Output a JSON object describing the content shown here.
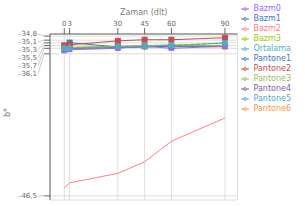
{
  "chart_data": {
    "type": "line",
    "x_label": "Zaman (dlt)",
    "y_label": "b*",
    "x": [
      0,
      3,
      30,
      45,
      60,
      90
    ],
    "xlim": [
      -8,
      97
    ],
    "xticks": [
      0,
      3,
      30,
      45,
      60,
      90
    ],
    "ylim": [
      -46.8,
      -34.65
    ],
    "yticks": [
      {
        "value": -34.8,
        "label": "-34,8"
      },
      {
        "value": -35.1,
        "label": "-35,1"
      },
      {
        "value": -35.3,
        "label": "-35,3"
      },
      {
        "value": -35.5,
        "label": "-35,5"
      },
      {
        "value": -35.7,
        "label": "-35,7"
      },
      {
        "value": -36.1,
        "label": "-36,1"
      },
      {
        "value": -46.5,
        "label": "-46,5"
      }
    ],
    "grid": true,
    "legend": "right",
    "series": [
      {
        "name": "Pantone1",
        "color": "#4472C4",
        "marker": "square",
        "line_style": "solid",
        "values": [
          -35.75,
          -35.28,
          -35.6,
          -35.55,
          -35.58,
          -35.55
        ]
      },
      {
        "name": "Pantone2",
        "color": "#C0504D",
        "marker": "square",
        "line_style": "solid",
        "values": [
          -35.48,
          -35.44,
          -35.15,
          -35.07,
          -35.07,
          -34.92
        ]
      },
      {
        "name": "Pantone3",
        "color": "#9BBB59",
        "marker": "triangle",
        "line_style": "solid",
        "values": [
          -35.68,
          -35.62,
          -35.55,
          -35.5,
          -35.46,
          -35.5
        ]
      },
      {
        "name": "Pantone4",
        "color": "#8064A2",
        "marker": "triangle",
        "line_style": "solid",
        "values": [
          -35.8,
          -35.72,
          -35.65,
          -35.55,
          -35.55,
          -35.52
        ]
      },
      {
        "name": "Pantone5",
        "color": "#4BACC6",
        "marker": "x",
        "line_style": "solid",
        "values": [
          -35.7,
          -35.72,
          -35.62,
          -35.56,
          -35.52,
          -35.3
        ]
      },
      {
        "name": "Pantone6",
        "color": "#F79646",
        "marker": "circle",
        "line_style": "solid",
        "values": [
          -35.82,
          -35.72,
          -35.63,
          -35.6,
          -35.52,
          -35.6
        ]
      },
      {
        "name": "Bazm1",
        "color": "#4472C4",
        "marker": "plus",
        "line_style": "solid",
        "values": [
          -35.7,
          -35.7,
          -35.63,
          -35.6,
          -35.54,
          -35.55
        ]
      },
      {
        "name": "Bazm2",
        "color": "#FF8080",
        "marker": "none",
        "line_style": "solid",
        "values": [
          -45.9,
          -45.55,
          -44.85,
          -44.0,
          -42.5,
          -40.8
        ]
      },
      {
        "name": "Bazm3",
        "color": "#99CC00",
        "marker": "none",
        "line_style": "solid",
        "values": [
          -35.7,
          -35.65,
          -35.57,
          -35.5,
          -35.46,
          -35.5
        ]
      },
      {
        "name": "Bazm0",
        "color": "#9966FF",
        "marker": "triangle",
        "line_style": "solid",
        "values": [
          -35.88,
          -35.8,
          -35.7,
          -35.55,
          -35.7,
          -35.55
        ]
      },
      {
        "name": "Ortalama",
        "color": "#4BACC6",
        "marker": "circle",
        "line_style": "dashed",
        "values": [
          -35.68,
          -35.7,
          -35.58,
          -35.55,
          -35.47,
          -35.3
        ]
      }
    ]
  }
}
